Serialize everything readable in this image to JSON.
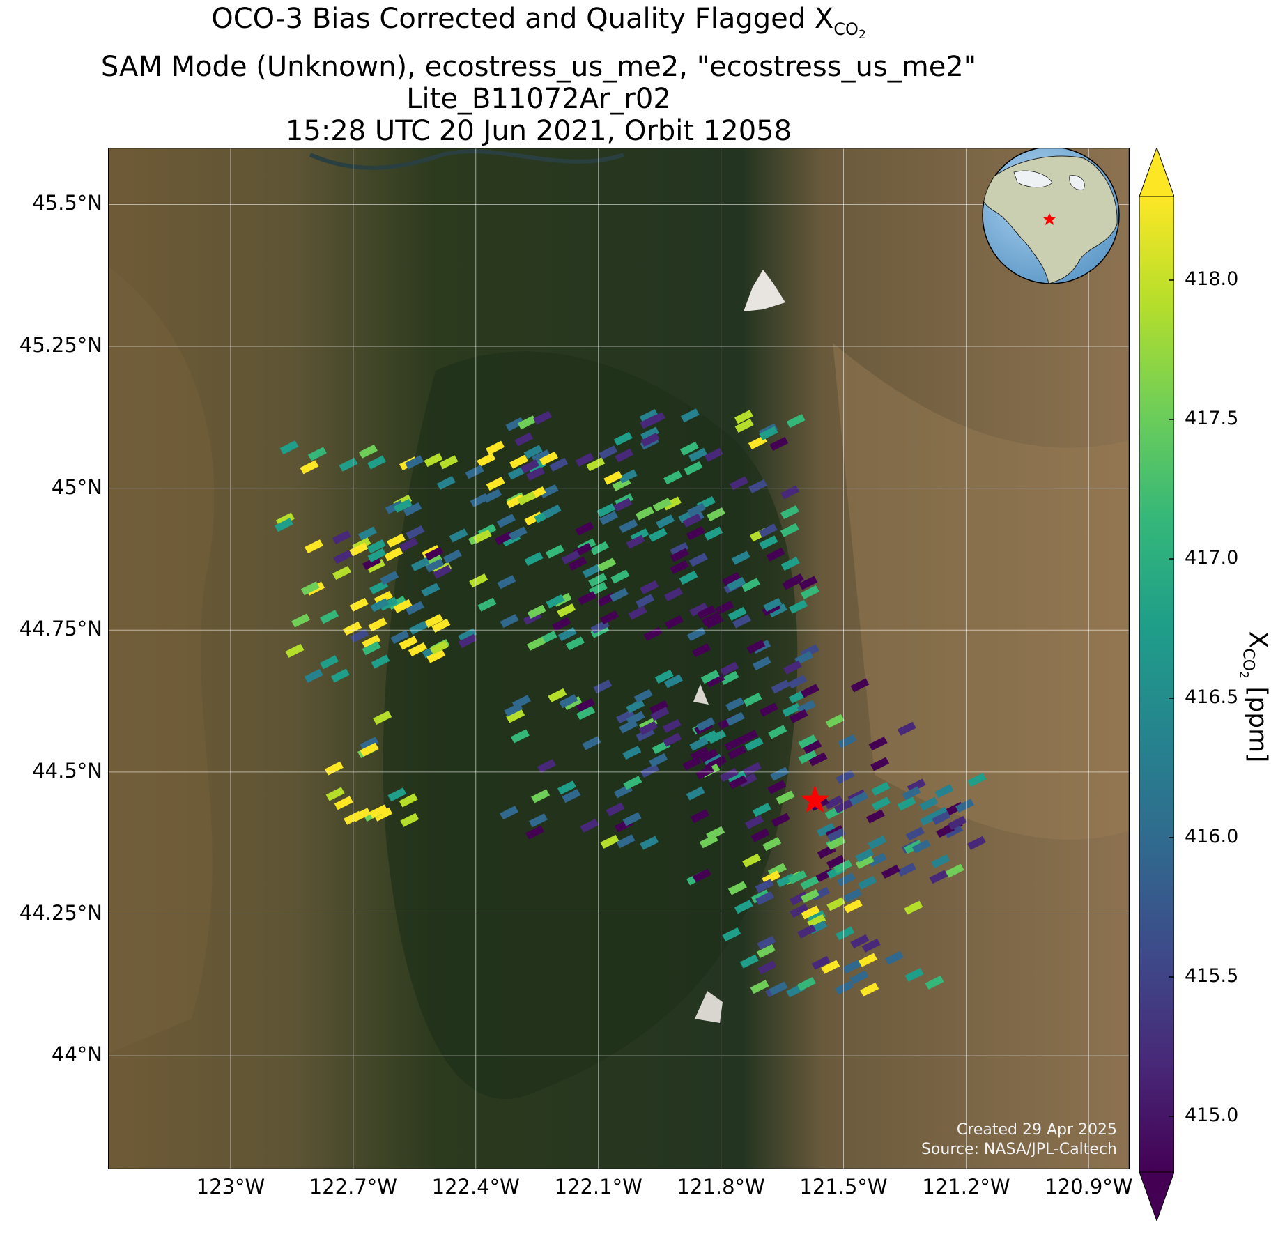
{
  "title": {
    "line1_prefix": "OCO-3 Bias Corrected and Quality Flagged X",
    "line1_sub": "CO",
    "line1_sub2": "2",
    "line2": "SAM Mode (Unknown), ecostress_us_me2, \"ecostress_us_me2\"",
    "line3": "Lite_B11072Ar_r02",
    "line4": "15:28 UTC 20 Jun 2021, Orbit 12058"
  },
  "map": {
    "lon_range": [
      -123.3,
      -120.8
    ],
    "lat_range": [
      43.8,
      45.6
    ],
    "lat_ticks": [
      {
        "value": 45.5,
        "label": "45.5°N"
      },
      {
        "value": 45.25,
        "label": "45.25°N"
      },
      {
        "value": 45.0,
        "label": "45°N"
      },
      {
        "value": 44.75,
        "label": "44.75°N"
      },
      {
        "value": 44.5,
        "label": "44.5°N"
      },
      {
        "value": 44.25,
        "label": "44.25°N"
      },
      {
        "value": 44.0,
        "label": "44°N"
      }
    ],
    "lon_ticks": [
      {
        "value": -123.0,
        "label": "123°W"
      },
      {
        "value": -122.7,
        "label": "122.7°W"
      },
      {
        "value": -122.4,
        "label": "122.4°W"
      },
      {
        "value": -122.1,
        "label": "122.1°W"
      },
      {
        "value": -121.8,
        "label": "121.8°W"
      },
      {
        "value": -121.5,
        "label": "121.5°W"
      },
      {
        "value": -121.2,
        "label": "121.2°W"
      },
      {
        "value": -120.9,
        "label": "120.9°W"
      }
    ],
    "grid": true,
    "target_marker": {
      "lon": -121.57,
      "lat": 44.45,
      "symbol": "red-star"
    },
    "inset_globe": {
      "position": "top-right",
      "marker": "red-star"
    },
    "colors": {
      "star": "#ff0000"
    }
  },
  "credit": {
    "line1": "Created 29 Apr 2025",
    "line2": "Source: NASA/JPL-Caltech"
  },
  "colorbar": {
    "label_prefix": "X",
    "label_sub": "CO",
    "label_sub2": "2",
    "label_suffix": " [ppm]",
    "min": 414.8,
    "max": 418.3,
    "ticks": [
      "415.0",
      "415.5",
      "416.0",
      "416.5",
      "417.0",
      "417.5",
      "418.0"
    ],
    "extend": "both",
    "colormap": [
      "#440154",
      "#482878",
      "#3e4989",
      "#31688e",
      "#26828e",
      "#1f9e89",
      "#35b779",
      "#6ece58",
      "#b5de2b",
      "#fde725"
    ]
  }
}
